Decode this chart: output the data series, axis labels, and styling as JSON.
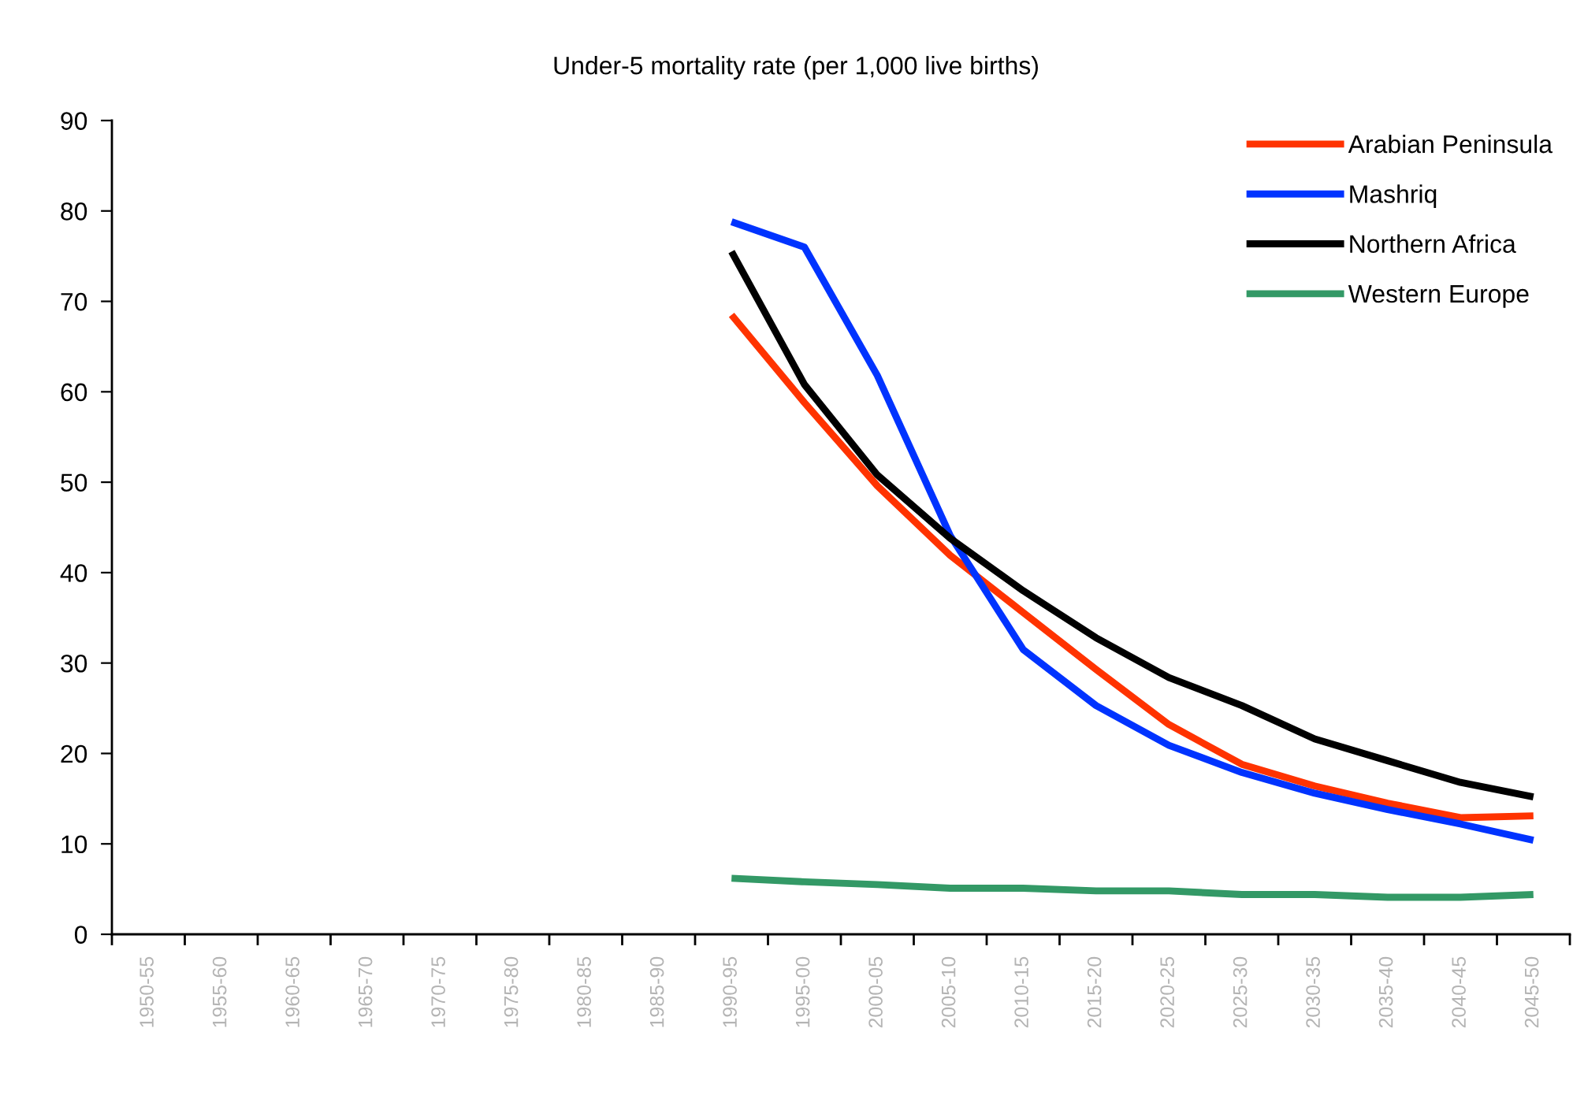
{
  "chart_data": {
    "type": "line",
    "title": "Under-5 mortality rate (per 1,000 live births)",
    "categories": [
      "1950-55",
      "1955-60",
      "1960-65",
      "1965-70",
      "1970-75",
      "1975-80",
      "1980-85",
      "1985-90",
      "1990-95",
      "1995-00",
      "2000-05",
      "2005-10",
      "2010-15",
      "2015-20",
      "2020-25",
      "2025-30",
      "2030-35",
      "2035-40",
      "2040-45",
      "2045-50"
    ],
    "series": [
      {
        "name": "Arabian Peninsula",
        "color": "#ff3300",
        "values": [
          null,
          null,
          null,
          null,
          null,
          null,
          null,
          null,
          68.5,
          58.8,
          49.6,
          41.9,
          35.6,
          29.3,
          23.2,
          18.8,
          16.4,
          14.5,
          12.9,
          13.1
        ]
      },
      {
        "name": "Mashriq",
        "color": "#0033ff",
        "values": [
          null,
          null,
          null,
          null,
          null,
          null,
          null,
          null,
          78.8,
          76.0,
          61.8,
          44.1,
          31.5,
          25.3,
          20.9,
          17.9,
          15.6,
          13.8,
          12.2,
          10.4
        ]
      },
      {
        "name": "Northern Africa",
        "color": "#000000",
        "values": [
          null,
          null,
          null,
          null,
          null,
          null,
          null,
          null,
          75.5,
          60.8,
          50.8,
          43.8,
          38.0,
          32.8,
          28.4,
          25.3,
          21.6,
          19.2,
          16.8,
          15.2
        ]
      },
      {
        "name": "Western Europe",
        "color": "#339966",
        "values": [
          null,
          null,
          null,
          null,
          null,
          null,
          null,
          null,
          6.2,
          5.8,
          5.5,
          5.1,
          5.1,
          4.8,
          4.8,
          4.4,
          4.4,
          4.1,
          4.1,
          4.4
        ]
      }
    ],
    "ylim": [
      0,
      90
    ],
    "yticks": [
      0,
      10,
      20,
      30,
      40,
      50,
      60,
      70,
      80,
      90
    ],
    "legend": "top right",
    "line_style": "solid"
  }
}
